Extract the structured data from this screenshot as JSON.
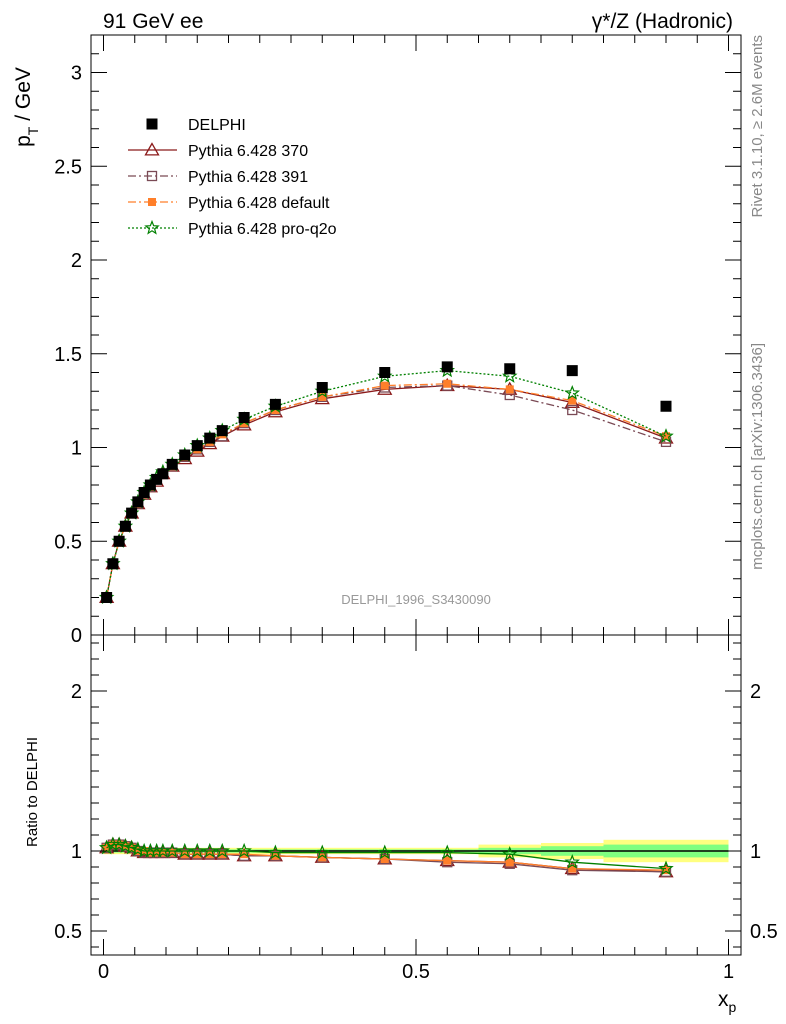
{
  "header": {
    "left": "91 GeV ee",
    "right": "γ*/Z (Hadronic)"
  },
  "side_labels": {
    "rivet": "Rivet 3.1.10, ≥ 2.6M events",
    "mcplots": "mcplots.cern.ch [arXiv:1306.3436]"
  },
  "watermark": "DELPHI_1996_S3430090",
  "colors": {
    "data": "#000000",
    "p370": "#8b1a1a",
    "p391": "#7a4a55",
    "default": "#ff7f2a",
    "proq2o": "#008000",
    "band_inner": "#80ff80",
    "band_outer": "#ffff80"
  },
  "chart_data": [
    {
      "type": "scatter",
      "ylabel_main": "p",
      "ylabel_sub": "T",
      "ylabel_unit": " / GeV",
      "xlim": [
        -0.02,
        1.02
      ],
      "ylim": [
        0,
        3.2
      ],
      "yticks": [
        "0",
        "0.5",
        "1",
        "1.5",
        "2",
        "2.5",
        "3"
      ],
      "x": [
        0.005,
        0.015,
        0.025,
        0.035,
        0.045,
        0.055,
        0.065,
        0.075,
        0.085,
        0.095,
        0.11,
        0.13,
        0.15,
        0.17,
        0.19,
        0.225,
        0.275,
        0.35,
        0.45,
        0.55,
        0.65,
        0.75,
        0.9
      ],
      "series": [
        {
          "key": "data",
          "name": "DELPHI",
          "marker": "square-filled",
          "values": [
            0.2,
            0.38,
            0.5,
            0.58,
            0.65,
            0.71,
            0.76,
            0.8,
            0.83,
            0.86,
            0.91,
            0.96,
            1.01,
            1.05,
            1.09,
            1.16,
            1.23,
            1.32,
            1.4,
            1.43,
            1.42,
            1.41,
            1.22
          ]
        },
        {
          "key": "p370",
          "name": "Pythia 6.428 370",
          "marker": "triangle-open",
          "dash": "",
          "values": [
            0.2,
            0.38,
            0.5,
            0.58,
            0.65,
            0.7,
            0.75,
            0.79,
            0.82,
            0.86,
            0.9,
            0.94,
            0.98,
            1.02,
            1.06,
            1.12,
            1.19,
            1.26,
            1.31,
            1.33,
            1.31,
            1.24,
            1.05
          ]
        },
        {
          "key": "p391",
          "name": "Pythia 6.428 391",
          "marker": "square-open",
          "dash": "8,3,2,3",
          "values": [
            0.2,
            0.38,
            0.5,
            0.58,
            0.65,
            0.7,
            0.75,
            0.79,
            0.83,
            0.86,
            0.9,
            0.95,
            0.99,
            1.03,
            1.06,
            1.13,
            1.2,
            1.27,
            1.32,
            1.33,
            1.28,
            1.2,
            1.03
          ]
        },
        {
          "key": "default",
          "name": "Pythia 6.428 default",
          "marker": "square-filled-small",
          "dash": "8,3,2,3",
          "values": [
            0.2,
            0.38,
            0.5,
            0.58,
            0.65,
            0.7,
            0.75,
            0.79,
            0.83,
            0.86,
            0.9,
            0.95,
            0.99,
            1.03,
            1.07,
            1.13,
            1.2,
            1.27,
            1.33,
            1.34,
            1.31,
            1.25,
            1.06
          ]
        },
        {
          "key": "proq2o",
          "name": "Pythia 6.428 pro-q2o",
          "marker": "star-open",
          "dash": "2,2",
          "values": [
            0.2,
            0.38,
            0.5,
            0.58,
            0.65,
            0.71,
            0.76,
            0.8,
            0.84,
            0.87,
            0.91,
            0.96,
            1.01,
            1.05,
            1.09,
            1.15,
            1.22,
            1.3,
            1.38,
            1.41,
            1.38,
            1.29,
            1.06
          ]
        }
      ]
    },
    {
      "type": "scatter",
      "ylabel": "Ratio to DELPHI",
      "xlabel_main": "x",
      "xlabel_sub": "p",
      "xlim": [
        -0.02,
        1.02
      ],
      "ylim": [
        0.35,
        2.35
      ],
      "xticks": [
        "0",
        "0.5",
        "1"
      ],
      "yticks": [
        "0.5",
        "1",
        "2"
      ],
      "band_bins": [
        [
          0.0,
          0.6,
          0.01,
          0.02
        ],
        [
          0.6,
          0.7,
          0.02,
          0.04
        ],
        [
          0.7,
          0.8,
          0.03,
          0.05
        ],
        [
          0.8,
          1.0,
          0.04,
          0.07
        ]
      ],
      "series": [
        {
          "key": "p370",
          "values": [
            1.02,
            1.04,
            1.04,
            1.03,
            1.02,
            1.0,
            0.99,
            0.99,
            0.99,
            0.99,
            0.99,
            0.98,
            0.98,
            0.98,
            0.98,
            0.97,
            0.97,
            0.96,
            0.95,
            0.94,
            0.93,
            0.89,
            0.87
          ]
        },
        {
          "key": "p391",
          "values": [
            1.02,
            1.04,
            1.04,
            1.03,
            1.02,
            1.0,
            0.99,
            0.99,
            0.99,
            0.99,
            0.99,
            0.98,
            0.98,
            0.98,
            0.98,
            0.97,
            0.97,
            0.96,
            0.95,
            0.93,
            0.92,
            0.88,
            0.87
          ]
        },
        {
          "key": "default",
          "values": [
            1.02,
            1.04,
            1.04,
            1.03,
            1.02,
            1.0,
            1.0,
            0.99,
            0.99,
            0.99,
            0.99,
            0.98,
            0.98,
            0.98,
            0.98,
            0.98,
            0.97,
            0.96,
            0.95,
            0.94,
            0.93,
            0.89,
            0.88
          ]
        },
        {
          "key": "proq2o",
          "values": [
            1.02,
            1.04,
            1.04,
            1.03,
            1.02,
            1.01,
            1.0,
            1.0,
            1.0,
            1.0,
            1.0,
            1.0,
            1.0,
            1.0,
            1.0,
            1.0,
            0.99,
            0.99,
            0.99,
            0.99,
            0.98,
            0.93,
            0.89
          ]
        }
      ]
    }
  ]
}
